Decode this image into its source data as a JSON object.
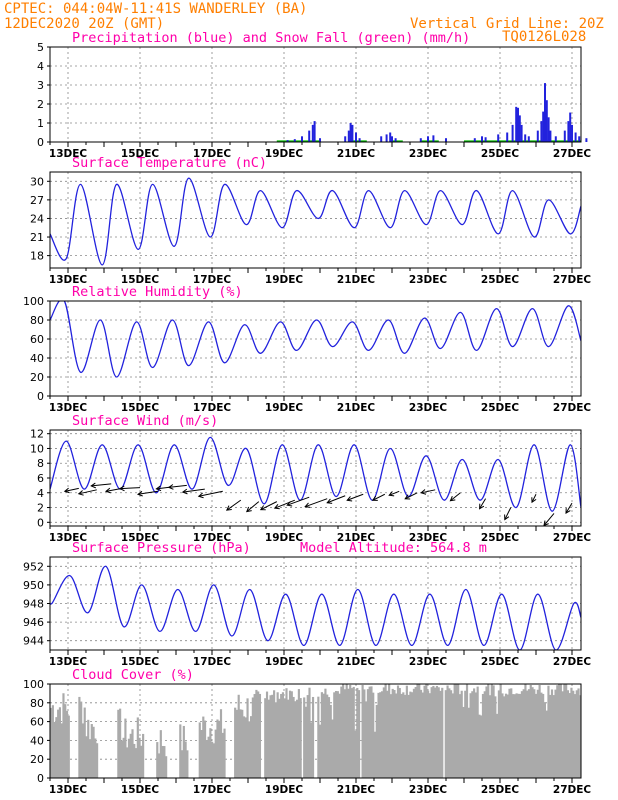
{
  "header": {
    "line1": "CPTEC:   044:04W-11:41S   WANDERLEY (BA)",
    "line2": "12DEC2020 20Z (GMT)",
    "grid_note": "Vertical Grid Line: 20Z",
    "code": "TQ0126L028"
  },
  "colors": {
    "header": "#ff7f00",
    "panel_title": "#ff00aa",
    "series_blue": "#2222dd",
    "snow_green": "#00bb00",
    "cloud_gray": "#aaaaaa"
  },
  "x_tick_labels": [
    "13DEC",
    "15DEC",
    "17DEC",
    "19DEC",
    "21DEC",
    "23DEC",
    "25DEC",
    "27DEC"
  ],
  "chart_data": [
    {
      "id": "precip",
      "type": "bar",
      "title": "Precipitation (blue) and Snow Fall (green) (mm/h)",
      "ylim": [
        0,
        5
      ],
      "yticks": [
        0,
        1,
        2,
        3,
        4,
        5
      ],
      "x_unit": "days since 12DEC2020 20Z",
      "bars": [
        [
          6.6,
          0.1
        ],
        [
          6.8,
          0.15
        ],
        [
          7.0,
          0.3
        ],
        [
          7.2,
          0.6
        ],
        [
          7.3,
          0.9
        ],
        [
          7.35,
          1.1
        ],
        [
          7.5,
          0.2
        ],
        [
          8.2,
          0.3
        ],
        [
          8.3,
          0.6
        ],
        [
          8.35,
          1.0
        ],
        [
          8.4,
          0.9
        ],
        [
          8.5,
          0.5
        ],
        [
          8.6,
          0.2
        ],
        [
          9.2,
          0.3
        ],
        [
          9.35,
          0.4
        ],
        [
          9.45,
          0.5
        ],
        [
          9.5,
          0.3
        ],
        [
          9.6,
          0.2
        ],
        [
          10.3,
          0.2
        ],
        [
          10.5,
          0.3
        ],
        [
          10.65,
          0.35
        ],
        [
          11.0,
          0.2
        ],
        [
          11.8,
          0.2
        ],
        [
          12.0,
          0.3
        ],
        [
          12.1,
          0.25
        ],
        [
          12.45,
          0.4
        ],
        [
          12.7,
          0.5
        ],
        [
          12.85,
          0.9
        ],
        [
          12.95,
          1.85
        ],
        [
          13.0,
          1.8
        ],
        [
          13.05,
          1.4
        ],
        [
          13.1,
          0.9
        ],
        [
          13.2,
          0.4
        ],
        [
          13.3,
          0.3
        ],
        [
          13.55,
          0.6
        ],
        [
          13.65,
          1.1
        ],
        [
          13.7,
          1.6
        ],
        [
          13.75,
          3.1
        ],
        [
          13.8,
          2.2
        ],
        [
          13.85,
          1.3
        ],
        [
          13.9,
          0.6
        ],
        [
          14.05,
          0.3
        ],
        [
          14.3,
          0.6
        ],
        [
          14.4,
          1.1
        ],
        [
          14.45,
          1.55
        ],
        [
          14.5,
          0.9
        ],
        [
          14.6,
          0.5
        ],
        [
          14.7,
          0.3
        ],
        [
          14.9,
          0.2
        ]
      ]
    },
    {
      "id": "temp",
      "type": "line",
      "title": "Surface Temperature (nC)",
      "ylim": [
        16,
        31.5
      ],
      "yticks": [
        18,
        21,
        24,
        27,
        30
      ],
      "min_values": [
        17.5,
        16.5,
        19.0,
        19.5,
        21.0,
        23.0,
        22.5,
        24.0,
        22.5,
        22.5,
        23.0,
        23.0,
        21.5,
        21.0,
        21.5
      ],
      "max_values": [
        29.5,
        29.5,
        29.5,
        30.5,
        29.5,
        28.5,
        28.5,
        28.5,
        28.5,
        28.5,
        28.5,
        28.5,
        28.5,
        27.0,
        28.5
      ]
    },
    {
      "id": "rh",
      "type": "line",
      "title": "Relative Humidity (%)",
      "ylim": [
        0,
        100
      ],
      "yticks": [
        0,
        20,
        40,
        60,
        80,
        100
      ],
      "min_values": [
        25,
        20,
        30,
        32,
        35,
        45,
        48,
        52,
        48,
        45,
        50,
        48,
        52,
        52,
        55
      ],
      "max_values": [
        100,
        80,
        78,
        80,
        78,
        75,
        78,
        80,
        78,
        80,
        82,
        88,
        92,
        92,
        95
      ]
    },
    {
      "id": "wind",
      "type": "line",
      "title": "Surface Wind (m/s)",
      "ylim": [
        -0.5,
        12.5
      ],
      "yticks": [
        0,
        2,
        4,
        6,
        8,
        10,
        12
      ],
      "min_values": [
        4.5,
        4.5,
        4.0,
        4.5,
        5.0,
        2.5,
        3.0,
        3.5,
        3.0,
        3.5,
        3.0,
        3.0,
        2.0,
        1.5,
        2.0
      ],
      "max_values": [
        11.0,
        10.5,
        10.5,
        10.5,
        11.5,
        10.0,
        10.5,
        10.5,
        10.5,
        10.0,
        9.0,
        8.5,
        8.5,
        10.5,
        10.5
      ]
    },
    {
      "id": "pressure",
      "type": "line",
      "title": "Surface Pressure (hPa)",
      "subtitle": "Model Altitude: 564.8 m",
      "ylim": [
        943,
        953
      ],
      "yticks": [
        944,
        946,
        948,
        950,
        952
      ],
      "min_values": [
        948.0,
        947.0,
        945.5,
        945.0,
        945.0,
        944.5,
        944.0,
        943.5,
        943.5,
        943.5,
        943.5,
        943.5,
        943.5,
        943.0,
        943.0
      ],
      "max_values": [
        951.0,
        952.0,
        950.0,
        949.5,
        950.0,
        949.5,
        949.0,
        949.0,
        949.5,
        949.0,
        949.0,
        949.5,
        949.0,
        949.0,
        948.0
      ]
    },
    {
      "id": "cloud",
      "type": "bar",
      "title": "Cloud Cover (%)",
      "ylim": [
        0,
        100
      ],
      "yticks": [
        0,
        20,
        40,
        60,
        80,
        100
      ],
      "level_by_day": [
        75,
        55,
        45,
        40,
        55,
        75,
        90,
        92,
        95,
        95,
        95,
        95,
        95,
        95,
        95
      ],
      "gaps": [
        [
          0.55,
          0.8
        ],
        [
          1.35,
          1.85
        ],
        [
          2.6,
          2.95
        ],
        [
          3.25,
          3.6
        ],
        [
          3.85,
          4.15
        ],
        [
          4.85,
          5.1
        ],
        [
          5.85,
          5.95
        ],
        [
          7.0,
          7.05
        ],
        [
          7.35,
          7.4
        ],
        [
          8.6,
          8.65
        ],
        [
          10.9,
          10.95
        ]
      ]
    }
  ]
}
